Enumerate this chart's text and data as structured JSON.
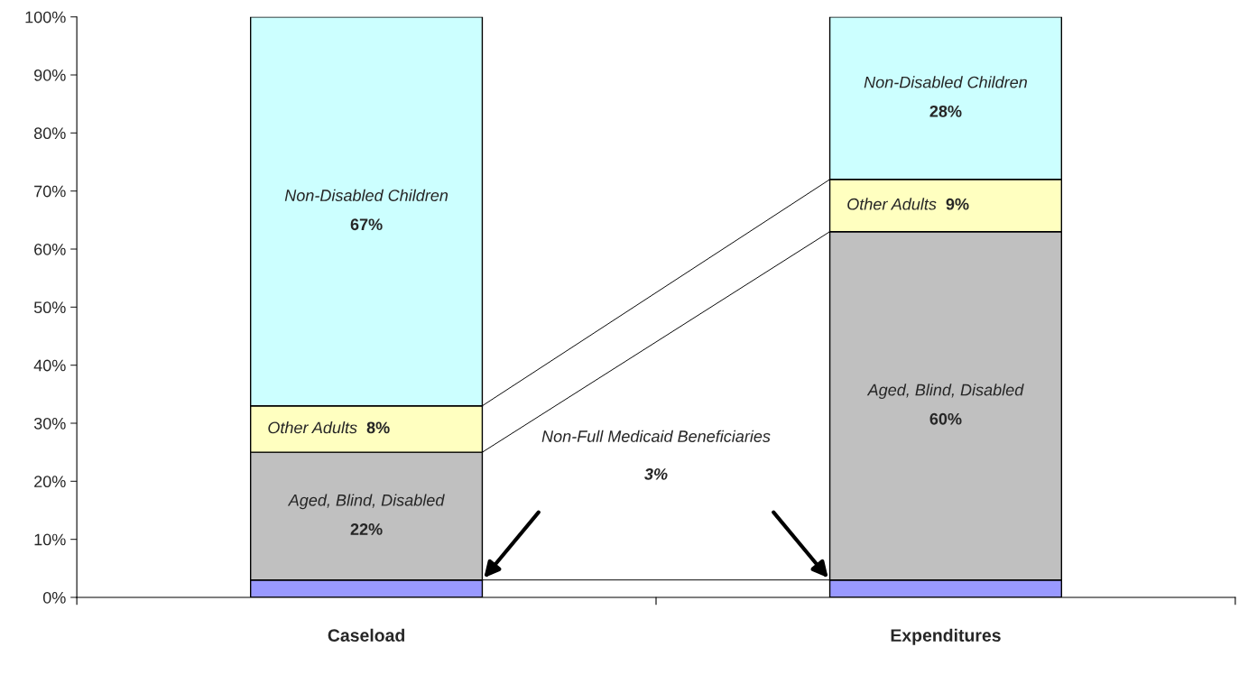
{
  "chart_data": {
    "type": "bar",
    "stacked": true,
    "categories": [
      "Caseload",
      "Expenditures"
    ],
    "series": [
      {
        "color": "#9999ff",
        "values": [
          3,
          3
        ]
      },
      {
        "name": "Aged, Blind, Disabled",
        "color": "#c0c0c0",
        "values": [
          22,
          60
        ],
        "value_labels": [
          "22%",
          "60%"
        ]
      },
      {
        "name": "Other Adults",
        "color": "#ffffc0",
        "values": [
          8,
          9
        ],
        "value_labels": [
          "8%",
          "9%"
        ]
      },
      {
        "name": "Non-Disabled Children",
        "color": "#ccffff",
        "values": [
          67,
          28
        ],
        "value_labels": [
          "67%",
          "28%"
        ]
      }
    ],
    "ylim": [
      0,
      100
    ],
    "yticks": [
      {
        "value": 0,
        "label": "0%"
      },
      {
        "value": 10,
        "label": "10%"
      },
      {
        "value": 20,
        "label": "20%"
      },
      {
        "value": 30,
        "label": "30%"
      },
      {
        "value": 40,
        "label": "40%"
      },
      {
        "value": 50,
        "label": "50%"
      },
      {
        "value": 60,
        "label": "60%"
      },
      {
        "value": 70,
        "label": "70%"
      },
      {
        "value": 80,
        "label": "80%"
      },
      {
        "value": 90,
        "label": "90%"
      },
      {
        "value": 100,
        "label": "100%"
      }
    ],
    "annotations": [
      "Non-Full Medicaid Beneficiaries",
      "3%"
    ],
    "grid": false,
    "legend": false
  }
}
